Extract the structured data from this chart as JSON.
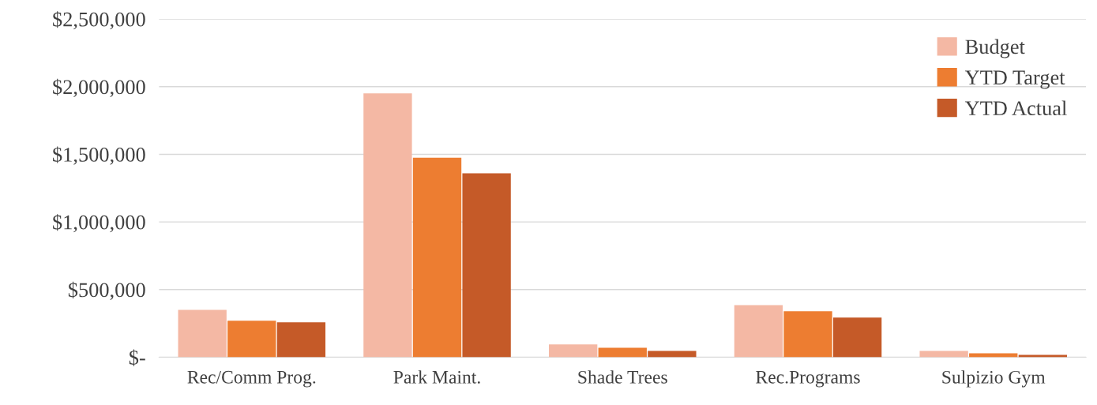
{
  "chart_data": {
    "type": "bar",
    "categories": [
      "Rec/Comm Prog.",
      "Park Maint.",
      "Shade Trees",
      "Rec.Programs",
      "Sulpizio Gym"
    ],
    "series": [
      {
        "name": "Budget",
        "color": "#f4b8a4",
        "values": [
          350000,
          1950000,
          95000,
          385000,
          47000
        ]
      },
      {
        "name": "YTD Target",
        "color": "#ed7d31",
        "values": [
          270000,
          1475000,
          70000,
          340000,
          29000
        ]
      },
      {
        "name": "YTD Actual",
        "color": "#c55a28",
        "values": [
          258000,
          1360000,
          47000,
          293000,
          18000
        ]
      }
    ],
    "ylim": [
      0,
      2500000
    ],
    "yticks": [
      {
        "value": 0,
        "label": "$-"
      },
      {
        "value": 500000,
        "label": "$500,000"
      },
      {
        "value": 1000000,
        "label": "$1,000,000"
      },
      {
        "value": 1500000,
        "label": "$1,500,000"
      },
      {
        "value": 2000000,
        "label": "$2,000,000"
      },
      {
        "value": 2500000,
        "label": "$2,500,000"
      }
    ],
    "grid": "y",
    "legend": "top right"
  }
}
